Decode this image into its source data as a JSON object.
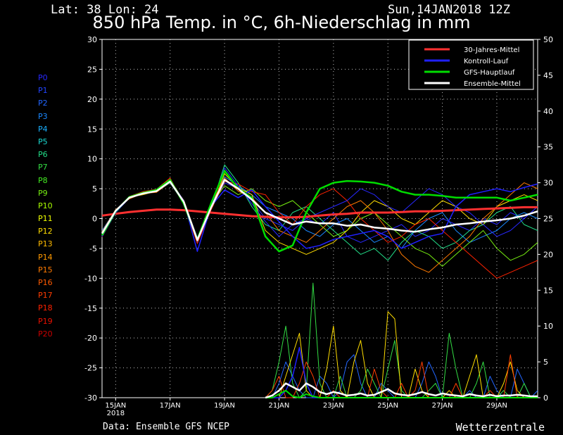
{
  "header": {
    "location": "Lat: 38 Lon: 24",
    "datetime": "Sun,14JAN2018 12Z",
    "title": "850 hPa Temp. in °C, 6h-Niederschlag in mm"
  },
  "footer": {
    "source": "Data: Ensemble GFS NCEP",
    "brand": "Wetterzentrale"
  },
  "members": [
    {
      "label": "P0",
      "color": "#2828ff"
    },
    {
      "label": "P1",
      "color": "#2244ff"
    },
    {
      "label": "P2",
      "color": "#2266ff"
    },
    {
      "label": "P3",
      "color": "#1a88ff"
    },
    {
      "label": "P4",
      "color": "#1ab0ff"
    },
    {
      "label": "P5",
      "color": "#1ad8d0"
    },
    {
      "label": "P6",
      "color": "#22dd88"
    },
    {
      "label": "P7",
      "color": "#33dd44"
    },
    {
      "label": "P8",
      "color": "#44ee22"
    },
    {
      "label": "P9",
      "color": "#77ee11"
    },
    {
      "label": "P10",
      "color": "#aaff00"
    },
    {
      "label": "P11",
      "color": "#eeff00"
    },
    {
      "label": "P12",
      "color": "#ffdd00"
    },
    {
      "label": "P13",
      "color": "#ffbb00"
    },
    {
      "label": "P14",
      "color": "#ff9900"
    },
    {
      "label": "P15",
      "color": "#ff7a00"
    },
    {
      "label": "P16",
      "color": "#ff5a00"
    },
    {
      "label": "P17",
      "color": "#ff3d00"
    },
    {
      "label": "P18",
      "color": "#ff2200"
    },
    {
      "label": "P19",
      "color": "#ee1100"
    },
    {
      "label": "P20",
      "color": "#cc0000"
    }
  ],
  "chart_data": {
    "type": "line",
    "x_unit": "days after 2018-01-14 12Z",
    "xlim": [
      0,
      16
    ],
    "ylim_left": [
      -30,
      30
    ],
    "ylim_right": [
      0,
      50
    ],
    "left_ticks": [
      -30,
      -25,
      -20,
      -15,
      -10,
      -5,
      0,
      5,
      10,
      15,
      20,
      25,
      30
    ],
    "right_ticks": [
      0,
      5,
      10,
      15,
      20,
      25,
      30,
      35,
      40,
      45,
      50
    ],
    "x_ticks": [
      {
        "x": 0.5,
        "label": "15JAN",
        "sub": "2018"
      },
      {
        "x": 2.5,
        "label": "17JAN"
      },
      {
        "x": 4.5,
        "label": "19JAN"
      },
      {
        "x": 6.5,
        "label": "21JAN"
      },
      {
        "x": 8.5,
        "label": "23JAN"
      },
      {
        "x": 10.5,
        "label": "25JAN"
      },
      {
        "x": 12.5,
        "label": "27JAN"
      },
      {
        "x": 14.5,
        "label": "29JAN"
      }
    ],
    "grid": true,
    "legend_position": "top-right",
    "legend": [
      {
        "name": "30-Jahres-Mittel",
        "color": "#ff3030"
      },
      {
        "name": "Kontroll-Lauf",
        "color": "#2020ff"
      },
      {
        "name": "GFS-Hauptlauf",
        "color": "#00dd00"
      },
      {
        "name": "Ensemble-Mittel",
        "color": "#ffffff"
      }
    ],
    "temperature": {
      "x": [
        0,
        0.5,
        1,
        1.5,
        2,
        2.5,
        3,
        3.5,
        4,
        4.5,
        5,
        5.5,
        6,
        6.5,
        7,
        7.5,
        8,
        8.5,
        9,
        9.5,
        10,
        10.5,
        11,
        11.5,
        12,
        12.5,
        13,
        13.5,
        14,
        14.5,
        15,
        15.5,
        16
      ],
      "climate_mean": [
        0.5,
        0.8,
        1.1,
        1.3,
        1.5,
        1.5,
        1.4,
        1.2,
        1.0,
        0.8,
        0.6,
        0.4,
        0.3,
        0.2,
        0.2,
        0.3,
        0.5,
        0.7,
        0.8,
        1.0,
        1.0,
        1.0,
        1.1,
        1.2,
        1.2,
        1.3,
        1.4,
        1.5,
        1.6,
        1.7,
        1.8,
        1.9,
        1.9
      ],
      "control": [
        -3,
        1,
        3.5,
        4.3,
        4.6,
        6.2,
        3.0,
        -5.5,
        2.0,
        4.8,
        3.5,
        4.8,
        2.0,
        -0.5,
        -3.0,
        -5.0,
        -4.5,
        -3.5,
        -3.0,
        -2.5,
        -2.0,
        -3.0,
        -5.0,
        -4.0,
        -3.0,
        -2.5,
        2.0,
        4.0,
        4.5,
        5.0,
        4.5,
        5.2,
        5.8
      ],
      "gfs_main": [
        -2.8,
        1.2,
        3.6,
        4.3,
        4.8,
        6.5,
        2.5,
        -3.5,
        2.5,
        8.0,
        5.0,
        3.5,
        -3.0,
        -5.5,
        -4.5,
        1.0,
        5.0,
        6.0,
        6.3,
        6.2,
        6.0,
        5.5,
        4.5,
        4.0,
        4.0,
        3.8,
        3.5,
        3.5,
        3.5,
        3.5,
        3.0,
        3.5,
        4.0
      ],
      "ensemble_mean": [
        -2.5,
        1.3,
        3.5,
        4.2,
        4.6,
        6.2,
        2.8,
        -3.6,
        1.8,
        6.5,
        5.0,
        3.2,
        1.0,
        0.0,
        -1.0,
        -0.5,
        -0.8,
        -0.8,
        -1.2,
        -1.0,
        -1.5,
        -1.7,
        -2.0,
        -2.2,
        -1.8,
        -1.5,
        -1.0,
        -0.8,
        -0.5,
        -0.3,
        0.0,
        0.5,
        1.2
      ],
      "members_spread": [
        [
          -3,
          1,
          3.4,
          4.2,
          4.5,
          6,
          2.8,
          -4,
          1.5,
          6,
          5,
          3,
          0,
          -1,
          -2,
          0,
          -1,
          1,
          -3,
          -4,
          -3,
          -2,
          -1,
          -3,
          -2,
          0,
          -1,
          -2,
          0,
          -1,
          1,
          0,
          2
        ],
        [
          -2,
          1.4,
          3.6,
          4.3,
          4.7,
          6.4,
          3,
          -3.2,
          2,
          7,
          5.5,
          4,
          2,
          1,
          0,
          -2,
          -3,
          -1,
          0,
          -2,
          -4,
          -3,
          -5,
          -2,
          0,
          1,
          -2,
          -4,
          -3,
          -2,
          0,
          1,
          0
        ],
        [
          -2.6,
          1.2,
          3.5,
          4.1,
          4.5,
          6,
          2.6,
          -3.8,
          1.8,
          9,
          6,
          2,
          -1,
          -2,
          1,
          2,
          0,
          -2,
          -4,
          -6,
          -5,
          -7,
          -4,
          -2,
          -3,
          -5,
          -4,
          -2,
          -1,
          1,
          2,
          -1,
          -2
        ],
        [
          -2.4,
          1.3,
          3.4,
          4.4,
          4.8,
          6.6,
          2.9,
          -3.4,
          2.2,
          5.5,
          4,
          5,
          3,
          2,
          3,
          1,
          -1,
          -3,
          -2,
          0,
          1,
          -1,
          -3,
          -5,
          -6,
          -8,
          -6,
          -4,
          -2,
          -5,
          -7,
          -6,
          -4
        ],
        [
          -2.8,
          1.1,
          3.6,
          4.0,
          4.6,
          6.2,
          2.7,
          -3.7,
          1.6,
          7.5,
          5.2,
          4,
          -2,
          -4,
          -5,
          -6,
          -5,
          -4,
          -2,
          1,
          3,
          2,
          0,
          -1,
          1,
          3,
          2,
          0,
          -1,
          2,
          3,
          4,
          3
        ],
        [
          -2.2,
          1.5,
          3.3,
          4.2,
          4.4,
          6.1,
          3.1,
          -3.3,
          2.4,
          6.8,
          4.6,
          3.5,
          1,
          -2,
          -3,
          -4,
          -2,
          0,
          2,
          3,
          1,
          -2,
          -6,
          -8,
          -9,
          -7,
          -5,
          -3,
          0,
          2,
          4,
          6,
          5
        ],
        [
          -3.1,
          1,
          3.7,
          4.5,
          4.9,
          6.8,
          2.5,
          -4.2,
          1.4,
          6.2,
          5.8,
          4.5,
          4,
          1,
          -1,
          2,
          4,
          5,
          3,
          0,
          -2,
          -4,
          -3,
          -1,
          0,
          -2,
          -4,
          -6,
          -8,
          -10,
          -9,
          -8,
          -7
        ],
        [
          -2.5,
          1.4,
          3.5,
          4.3,
          4.6,
          6.3,
          2.8,
          -3.5,
          2.0,
          8.5,
          5.5,
          2.5,
          -0.5,
          -3,
          -1,
          0,
          1,
          2,
          3,
          5,
          4,
          2,
          1,
          3,
          5,
          4,
          2,
          1,
          -1,
          -3,
          -2,
          0,
          2
        ]
      ]
    },
    "precipitation_mm": {
      "x": [
        6,
        6.25,
        6.5,
        6.75,
        7,
        7.25,
        7.5,
        7.75,
        8,
        8.25,
        8.5,
        8.75,
        9,
        9.25,
        9.5,
        9.75,
        10,
        10.25,
        10.5,
        10.75,
        11,
        11.25,
        11.5,
        11.75,
        12,
        12.25,
        12.5,
        12.75,
        13,
        13.25,
        13.5,
        13.75,
        14,
        14.25,
        14.5,
        14.75,
        15,
        15.25,
        15.5,
        15.75,
        16
      ],
      "ensemble_mean": [
        0,
        0.3,
        1,
        2,
        1.5,
        1,
        2,
        1.5,
        0.8,
        0.5,
        0.8,
        0.6,
        0.3,
        0.4,
        0.6,
        0.3,
        0.4,
        0.8,
        1.2,
        0.6,
        0.4,
        0.3,
        0.5,
        0.8,
        0.5,
        0.3,
        0.6,
        0.4,
        0.3,
        0.2,
        0.5,
        0.3,
        0.2,
        0.4,
        0.2,
        0.3,
        0.3,
        0.4,
        0.3,
        0.2,
        0.2
      ],
      "gfs_main": [
        0,
        0,
        0.5,
        1,
        0.2,
        0,
        0.5,
        0.2,
        0,
        0,
        0,
        0,
        0,
        0,
        0,
        0,
        0,
        0,
        0,
        0,
        0,
        0,
        0,
        0,
        0,
        0,
        0,
        0,
        0,
        0,
        0,
        0,
        0,
        0,
        0,
        0,
        0,
        0,
        0,
        0,
        0
      ],
      "control": [
        0,
        0,
        0,
        1,
        3,
        7,
        2,
        0,
        0,
        0,
        0,
        0,
        0,
        0,
        0,
        0,
        0,
        0,
        0,
        0,
        0,
        0,
        0,
        0,
        0,
        0,
        0,
        0,
        0,
        0,
        0,
        0,
        0,
        0,
        0,
        0,
        0,
        0,
        0,
        0,
        0
      ],
      "members_spread": [
        [
          0,
          0,
          2,
          5,
          3,
          1,
          0,
          0,
          3,
          2,
          0,
          1,
          5,
          6,
          2,
          0,
          0,
          2,
          1,
          0,
          0,
          0,
          0,
          2,
          5,
          3,
          0,
          0,
          0,
          0,
          1,
          0,
          0,
          3,
          1,
          0,
          0,
          4,
          2,
          0,
          1
        ],
        [
          0,
          1,
          5,
          10,
          2,
          0,
          1,
          16,
          2,
          0,
          0,
          3,
          0,
          0,
          1,
          4,
          2,
          0,
          4,
          8,
          1,
          0,
          0,
          0,
          1,
          2,
          0,
          9,
          4,
          0,
          0,
          2,
          5,
          0,
          0,
          1,
          0,
          0,
          2,
          0,
          0
        ],
        [
          0,
          0,
          0,
          3,
          6,
          9,
          1,
          0,
          0,
          4,
          10,
          1,
          0,
          5,
          8,
          2,
          0,
          0,
          12,
          11,
          0,
          0,
          4,
          1,
          0,
          0,
          0,
          1,
          0,
          0,
          3,
          6,
          0,
          0,
          0,
          2,
          5,
          1,
          0,
          0,
          0
        ],
        [
          0,
          1,
          3,
          0,
          0,
          2,
          5,
          3,
          0,
          0,
          1,
          0,
          0,
          0,
          0,
          0,
          4,
          1,
          0,
          0,
          2,
          0,
          1,
          5,
          0,
          0,
          0,
          0,
          2,
          0,
          0,
          0,
          0,
          1,
          0,
          0,
          6,
          0,
          0,
          0,
          0
        ]
      ]
    },
    "temperature_ylabel": "",
    "precip_ylabel": ""
  }
}
